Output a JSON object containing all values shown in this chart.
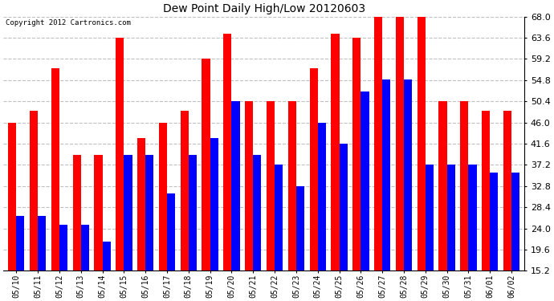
{
  "title": "Dew Point Daily High/Low 20120603",
  "copyright": "Copyright 2012 Cartronics.com",
  "categories": [
    "05/10",
    "05/11",
    "05/12",
    "05/13",
    "05/14",
    "05/15",
    "05/16",
    "05/17",
    "05/18",
    "05/19",
    "05/20",
    "05/21",
    "05/22",
    "05/23",
    "05/24",
    "05/25",
    "05/26",
    "05/27",
    "05/28",
    "05/29",
    "05/30",
    "05/31",
    "06/01",
    "06/02"
  ],
  "highs": [
    46.0,
    48.4,
    57.2,
    39.2,
    39.2,
    63.6,
    42.8,
    46.0,
    48.4,
    59.2,
    64.4,
    50.4,
    50.4,
    50.4,
    57.2,
    64.4,
    63.6,
    68.0,
    68.0,
    68.0,
    50.4,
    50.4,
    48.4,
    48.4
  ],
  "lows": [
    26.6,
    26.6,
    24.8,
    24.8,
    21.2,
    39.2,
    39.2,
    31.2,
    39.2,
    42.8,
    50.4,
    39.2,
    37.2,
    32.8,
    46.0,
    41.6,
    52.4,
    55.0,
    55.0,
    37.2,
    37.2,
    37.2,
    35.6,
    35.6
  ],
  "high_color": "#ff0000",
  "low_color": "#0000ff",
  "bg_color": "#ffffff",
  "plot_bg_color": "#ffffff",
  "grid_color": "#c0c0c0",
  "ylim_min": 15.2,
  "ylim_max": 68.0,
  "yticks": [
    15.2,
    19.6,
    24.0,
    28.4,
    32.8,
    37.2,
    41.6,
    46.0,
    50.4,
    54.8,
    59.2,
    63.6,
    68.0
  ],
  "bar_bottom": 15.2,
  "figwidth": 6.9,
  "figheight": 3.75,
  "title_fontsize": 10,
  "tick_fontsize": 7,
  "ytick_fontsize": 8
}
